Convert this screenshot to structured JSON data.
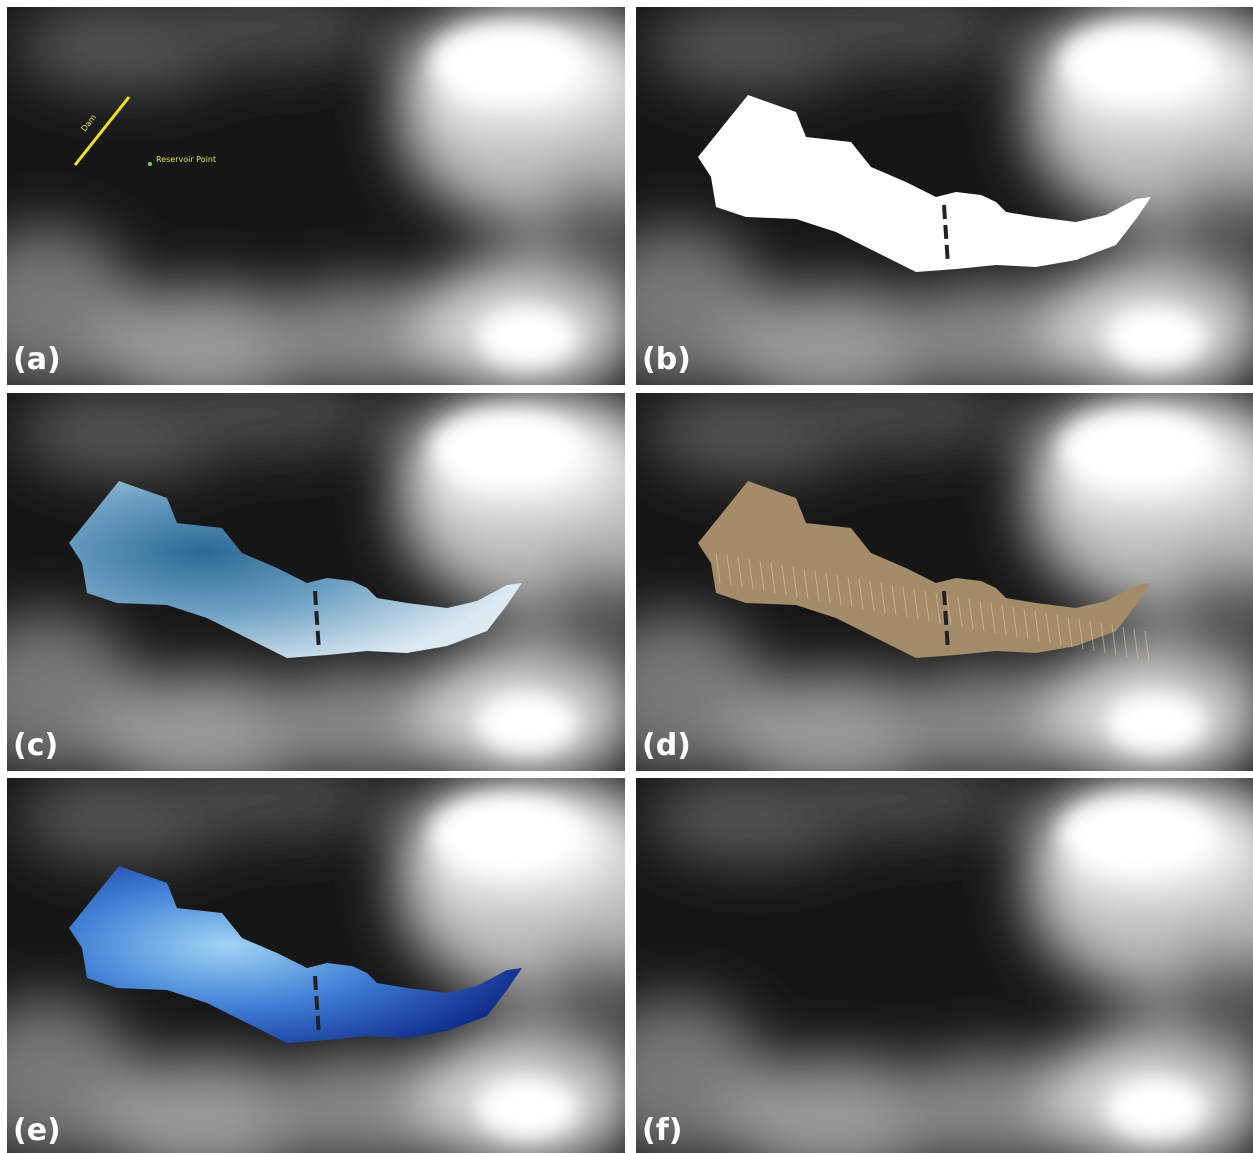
{
  "panels": [
    {
      "label": "(a)",
      "annotations": {
        "dam": "Dam",
        "point": "Reservoir Point"
      }
    },
    {
      "label": "(b)"
    },
    {
      "label": "(c)"
    },
    {
      "label": "(d)"
    },
    {
      "label": "(e)"
    },
    {
      "label": "(f)"
    }
  ]
}
